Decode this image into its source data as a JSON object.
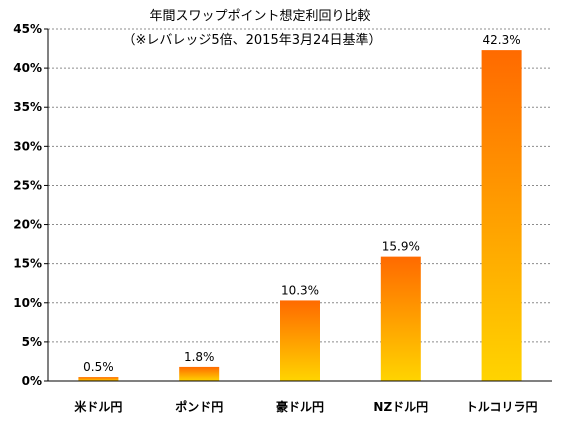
{
  "chart_data": {
    "type": "bar",
    "title": "年間スワップポイント想定利回り比較",
    "subtitle": "（※レバレッジ5倍、2015年3月24日基準）",
    "categories": [
      "米ドル円",
      "ポンド円",
      "豪ドル円",
      "NZドル円",
      "トルコリラ円"
    ],
    "values": [
      0.5,
      1.8,
      10.3,
      15.9,
      42.3
    ],
    "data_labels": [
      "0.5%",
      "1.8%",
      "10.3%",
      "15.9%",
      "42.3%"
    ],
    "y_ticks": [
      "0%",
      "5%",
      "10%",
      "15%",
      "20%",
      "25%",
      "30%",
      "35%",
      "40%",
      "45%"
    ],
    "ylim": [
      0,
      45
    ],
    "xlabel": "",
    "ylabel": "",
    "grid": true,
    "legend": "none",
    "bar_gradient": [
      "#ff6a00",
      "#ffd400"
    ]
  }
}
